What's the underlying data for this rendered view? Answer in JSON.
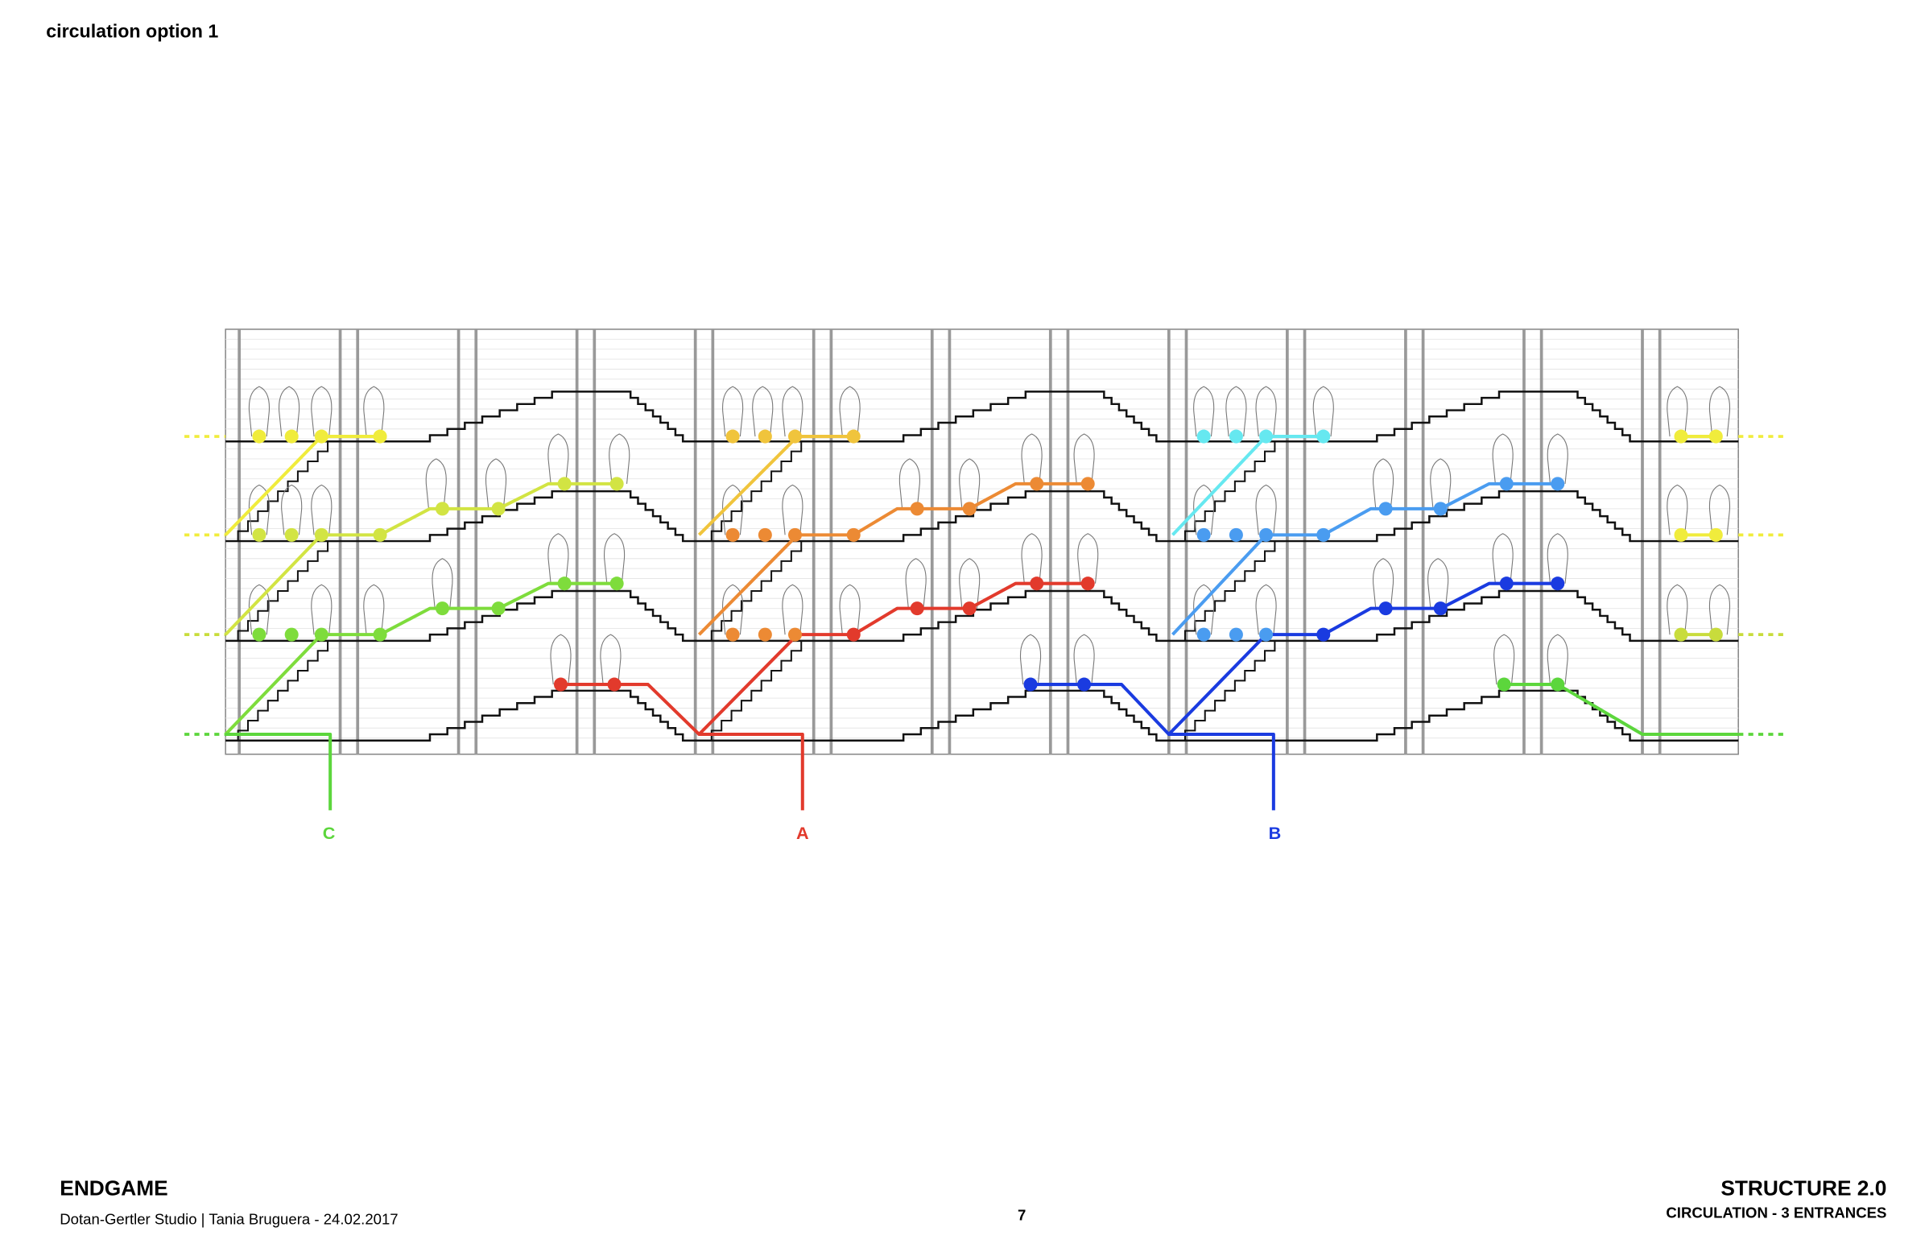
{
  "header": {
    "title": "circulation option 1"
  },
  "entrances": [
    {
      "label": "C"
    },
    {
      "label": "A"
    },
    {
      "label": "B"
    }
  ],
  "footer": {
    "project": "ENDGAME",
    "credits": "Dotan-Gertler Studio | Tania Bruguera - 24.02.2017",
    "page": "7",
    "structure": "STRUCTURE 2.0",
    "subtitle": "CIRCULATION - 3 ENTRANCES"
  }
}
